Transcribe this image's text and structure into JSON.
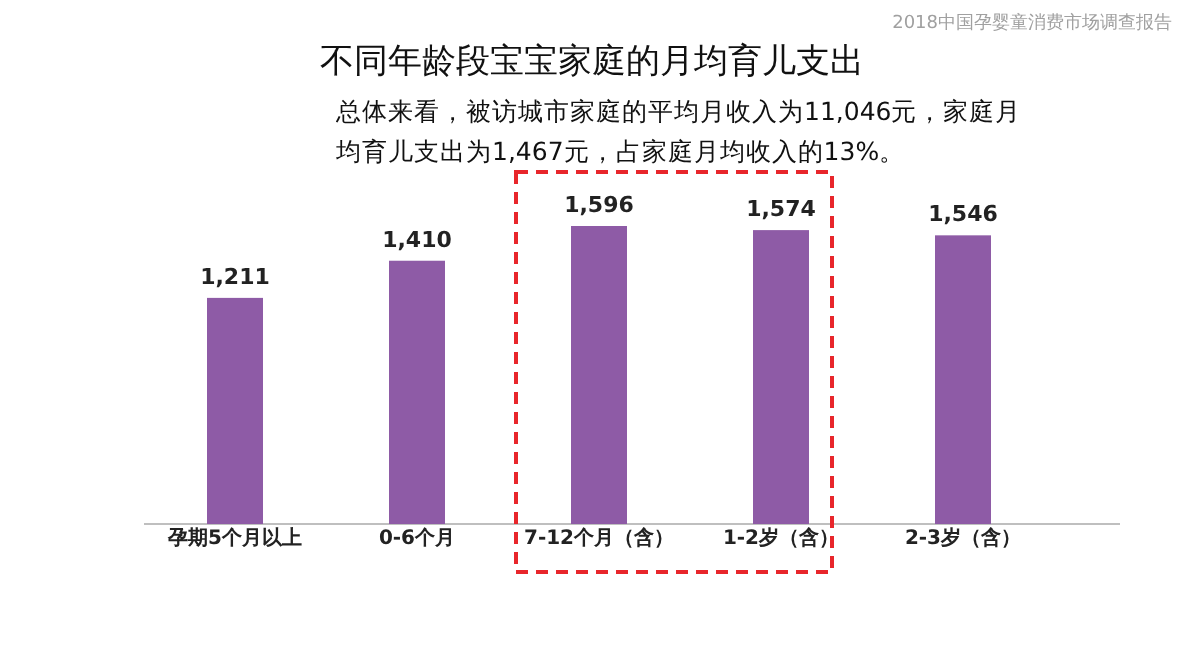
{
  "chart_data": {
    "type": "bar",
    "title": "不同年龄段宝宝家庭的月均育儿支出",
    "subtitle": "总体来看，被访城市家庭的平均月收入为11,046元，家庭月均育儿支出为1,467元，占家庭月均收入的13%。",
    "categories": [
      "孕期5个月以上",
      "0-6个月",
      "7-12个月（含）",
      "1-2岁（含）",
      "2-3岁（含）"
    ],
    "values": [
      1211,
      1410,
      1596,
      1574,
      1546
    ],
    "color": "#8e5ba6",
    "value_labels": [
      "1,211",
      "1,410",
      "1,596",
      "1,574",
      "1,546"
    ],
    "annotations": [
      "2018中国孕婴童消费市场调查报告"
    ]
  }
}
